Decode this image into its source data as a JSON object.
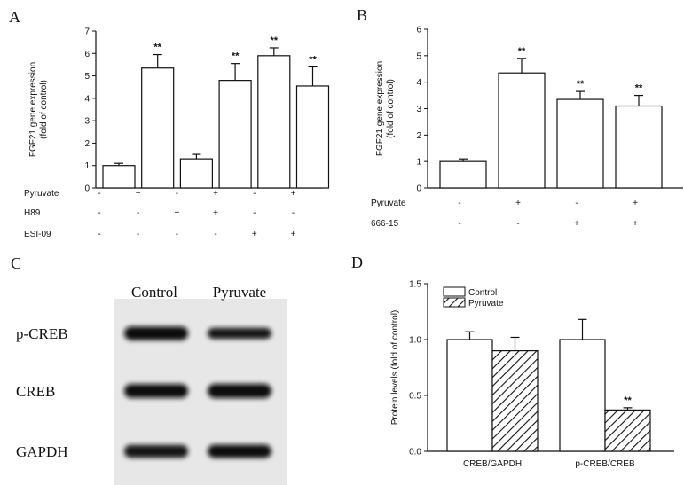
{
  "chart_data": [
    {
      "panel": "A",
      "type": "bar",
      "ylabel": "FGF21 gene expression\n(fold of control)",
      "ylim": [
        0,
        7
      ],
      "yticks": [
        0,
        1,
        2,
        3,
        4,
        5,
        6,
        7
      ],
      "values": [
        1.0,
        5.35,
        1.3,
        4.8,
        5.9,
        4.55
      ],
      "errors": [
        0.1,
        0.6,
        0.2,
        0.75,
        0.35,
        0.85
      ],
      "significance": [
        "",
        "**",
        "",
        "**",
        "**",
        "**"
      ],
      "conditions": [
        {
          "name": "Pyruvate",
          "signs": [
            "-",
            "+",
            "-",
            "+",
            "-",
            "+"
          ]
        },
        {
          "name": "H89",
          "signs": [
            "-",
            "-",
            "+",
            "+",
            "-",
            "-"
          ]
        },
        {
          "name": "ESI-09",
          "signs": [
            "-",
            "-",
            "-",
            "-",
            "+",
            "+"
          ]
        }
      ]
    },
    {
      "panel": "B",
      "type": "bar",
      "ylabel": "FGF21 gene expression\n(fold of control)",
      "ylim": [
        0,
        6
      ],
      "yticks": [
        0,
        1,
        2,
        3,
        4,
        5,
        6
      ],
      "values": [
        1.0,
        4.35,
        3.35,
        3.1
      ],
      "errors": [
        0.1,
        0.55,
        0.3,
        0.4
      ],
      "significance": [
        "",
        "**",
        "**",
        "**"
      ],
      "conditions": [
        {
          "name": "Pyruvate",
          "signs": [
            "-",
            "+",
            "-",
            "+"
          ]
        },
        {
          "name": "666-15",
          "signs": [
            "-",
            "-",
            "+",
            "+"
          ]
        }
      ]
    },
    {
      "panel": "D",
      "type": "bar",
      "ylabel": "Protein levels (fold of control)",
      "ylim": [
        0,
        1.5
      ],
      "yticks": [
        "0.0",
        "0.5",
        "1.0",
        "1.5"
      ],
      "categories": [
        "CREB/GAPDH",
        "p-CREB/CREB"
      ],
      "legend_position": "top-left",
      "series": [
        {
          "name": "Control",
          "values": [
            1.0,
            1.0
          ],
          "errors": [
            0.07,
            0.18
          ],
          "fill": "open"
        },
        {
          "name": "Pyruvate",
          "values": [
            0.9,
            0.37
          ],
          "errors": [
            0.12,
            0.02
          ],
          "fill": "hatched"
        }
      ],
      "significance": [
        [
          "",
          ""
        ],
        [
          "",
          "**"
        ]
      ]
    }
  ],
  "western_blot": {
    "panel": "C",
    "columns": [
      "Control",
      "Pyruvate"
    ],
    "rows": [
      {
        "label": "p-CREB",
        "intensity": [
          0.85,
          0.55
        ]
      },
      {
        "label": "CREB",
        "intensity": [
          0.85,
          0.9
        ]
      },
      {
        "label": "GAPDH",
        "intensity": [
          0.75,
          0.8
        ]
      }
    ]
  }
}
